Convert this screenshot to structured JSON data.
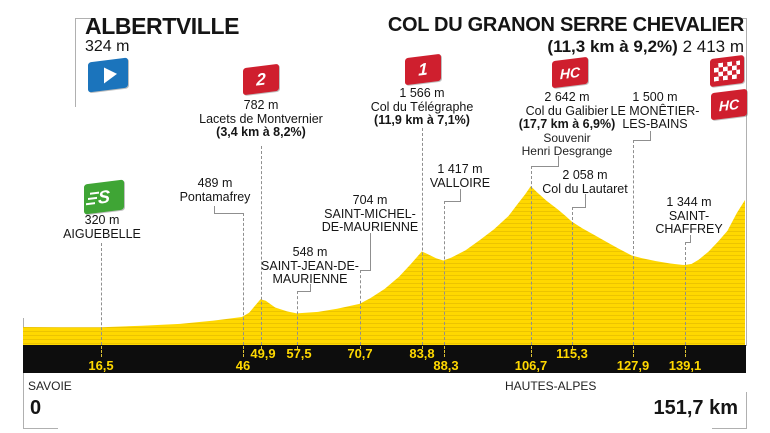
{
  "header": {
    "start": {
      "name": "ALBERTVILLE",
      "altitude": "324 m"
    },
    "finish": {
      "name": "COL DU GRANON SERRE CHEVALIER",
      "gradient": "(11,3 km à 9,2%)",
      "altitude": "2 413 m",
      "category": "HC"
    }
  },
  "labels": {
    "aiguebelle": {
      "km": "16,5",
      "altitude": "320 m",
      "line1": "AIGUEBELLE"
    },
    "pontamafrey": {
      "km": "46",
      "altitude": "489 m",
      "line1": "Pontamafrey"
    },
    "montvernier": {
      "km": "49,9",
      "altitude": "782 m",
      "line1": "Lacets de Montvernier",
      "gradient": "(3,4 km à 8,2%)",
      "category": "2"
    },
    "saint_jean": {
      "km": "57,5",
      "altitude": "548 m",
      "line1": "SAINT-JEAN-DE-",
      "line2": "MAURIENNE"
    },
    "saint_michel": {
      "km": "70,7",
      "altitude": "704 m",
      "line1": "SAINT-MICHEL-",
      "line2": "DE-MAURIENNE"
    },
    "telegraphe": {
      "km": "83,8",
      "altitude": "1 566 m",
      "line1": "Col du Télégraphe",
      "gradient": "(11,9 km à 7,1%)",
      "category": "1"
    },
    "valloire": {
      "km": "88,3",
      "altitude": "1 417 m",
      "line1": "VALLOIRE"
    },
    "galibier": {
      "km": "106,7",
      "altitude": "2 642 m",
      "line1": "Col du Galibier",
      "gradient": "(17,7 km à 6,9%)",
      "note1": "Souvenir",
      "note2": "Henri Desgrange",
      "category": "HC"
    },
    "lautaret": {
      "km": "115,3",
      "altitude": "2 058 m",
      "line1": "Col du Lautaret"
    },
    "monetier": {
      "km": "127,9",
      "altitude": "1 500 m",
      "line1": "LE MONÊTIER-",
      "line2": "LES-BAINS"
    },
    "st_chaffrey": {
      "km": "139,1",
      "altitude": "1 344 m",
      "line1": "SAINT-",
      "line2": "CHAFFREY"
    }
  },
  "axis": {
    "km_start": "0",
    "km_end": "151,7 km",
    "region_left": "SAVOIE",
    "region_right": "HAUTES-ALPES"
  },
  "colors": {
    "profile_yellow": "#FFD800",
    "hatch": "#ecc400",
    "bar_black": "#0d0d0d",
    "badge_red": "#cf1f2e",
    "sprint_green": "#3fa535",
    "start_blue": "#1b74bc"
  },
  "chart_data": {
    "type": "area",
    "title": "Albertville → Col du Granon Serre Chevalier",
    "xlabel": "km",
    "ylabel": "m",
    "x_range": [
      0,
      151.7
    ],
    "grid": false,
    "start": {
      "name": "Albertville",
      "km": 0,
      "elevation_m": 324
    },
    "finish": {
      "name": "Col du Granon Serre Chevalier",
      "km": 151.7,
      "elevation_m": 2413,
      "climb": "11,3 km à 9,2%",
      "category": "HC"
    },
    "waypoints": [
      {
        "name": "Aiguebelle",
        "km": 16.5,
        "elevation_m": 320,
        "type": "sprint"
      },
      {
        "name": "Pontamafrey",
        "km": 46,
        "elevation_m": 489
      },
      {
        "name": "Lacets de Montvernier",
        "km": 49.9,
        "elevation_m": 782,
        "category": "2",
        "climb": "3,4 km à 8,2%"
      },
      {
        "name": "Saint-Jean-de-Maurienne",
        "km": 57.5,
        "elevation_m": 548
      },
      {
        "name": "Saint-Michel-de-Maurienne",
        "km": 70.7,
        "elevation_m": 704
      },
      {
        "name": "Col du Télégraphe",
        "km": 83.8,
        "elevation_m": 1566,
        "category": "1",
        "climb": "11,9 km à 7,1%"
      },
      {
        "name": "Valloire",
        "km": 88.3,
        "elevation_m": 1417
      },
      {
        "name": "Col du Galibier",
        "km": 106.7,
        "elevation_m": 2642,
        "category": "HC",
        "climb": "17,7 km à 6,9%",
        "note": "Souvenir Henri Desgrange"
      },
      {
        "name": "Col du Lautaret",
        "km": 115.3,
        "elevation_m": 2058
      },
      {
        "name": "Le Monêtier-les-Bains",
        "km": 127.9,
        "elevation_m": 1500
      },
      {
        "name": "Saint-Chaffrey",
        "km": 139.1,
        "elevation_m": 1344
      }
    ],
    "profile_points": [
      [
        0,
        324
      ],
      [
        8,
        321
      ],
      [
        16.5,
        320
      ],
      [
        25,
        345
      ],
      [
        33,
        375
      ],
      [
        40,
        430
      ],
      [
        46,
        489
      ],
      [
        47.5,
        560
      ],
      [
        49.9,
        782
      ],
      [
        51,
        755
      ],
      [
        53,
        645
      ],
      [
        55.5,
        580
      ],
      [
        57.5,
        548
      ],
      [
        62,
        572
      ],
      [
        66,
        625
      ],
      [
        70.7,
        704
      ],
      [
        73,
        800
      ],
      [
        76,
        950
      ],
      [
        79,
        1150
      ],
      [
        81.5,
        1360
      ],
      [
        83.8,
        1566
      ],
      [
        85,
        1525
      ],
      [
        86.8,
        1455
      ],
      [
        88.3,
        1417
      ],
      [
        90,
        1465
      ],
      [
        93,
        1585
      ],
      [
        96,
        1755
      ],
      [
        99,
        1935
      ],
      [
        102,
        2150
      ],
      [
        104,
        2355
      ],
      [
        105.5,
        2505
      ],
      [
        106.7,
        2642
      ],
      [
        108,
        2540
      ],
      [
        110,
        2400
      ],
      [
        112.5,
        2250
      ],
      [
        114,
        2150
      ],
      [
        115.3,
        2058
      ],
      [
        117.5,
        1948
      ],
      [
        120,
        1838
      ],
      [
        122.5,
        1728
      ],
      [
        125,
        1618
      ],
      [
        127.9,
        1500
      ],
      [
        130,
        1458
      ],
      [
        133,
        1408
      ],
      [
        136,
        1368
      ],
      [
        138.5,
        1346
      ],
      [
        139.1,
        1344
      ],
      [
        140.5,
        1362
      ],
      [
        142,
        1432
      ],
      [
        144,
        1562
      ],
      [
        146,
        1725
      ],
      [
        148,
        1905
      ],
      [
        150,
        2200
      ],
      [
        151.7,
        2413
      ]
    ]
  }
}
